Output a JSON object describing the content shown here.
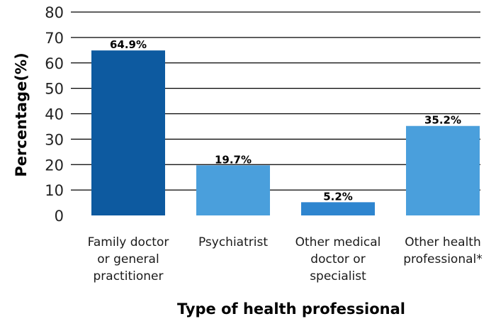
{
  "chart_data": {
    "type": "bar",
    "title": "",
    "xlabel": "Type of health professional",
    "ylabel": "Percentage(%)",
    "ylim": [
      0,
      80
    ],
    "yticks": [
      0,
      10,
      20,
      30,
      40,
      50,
      60,
      70,
      80
    ],
    "grid": true,
    "categories": [
      [
        "Family doctor",
        "or general",
        "practitioner"
      ],
      [
        "Psychiatrist"
      ],
      [
        "Other medical",
        "doctor or",
        "specialist"
      ],
      [
        "Other health",
        "professional*"
      ]
    ],
    "values": [
      64.9,
      19.7,
      5.2,
      35.2
    ],
    "data_labels": [
      "64.9%",
      "19.7%",
      "5.2%",
      "35.2%"
    ],
    "colors": [
      "#0d5aa0",
      "#4a9fdc",
      "#2e85cf",
      "#4a9fdc"
    ],
    "gridline_color": "#000000"
  }
}
